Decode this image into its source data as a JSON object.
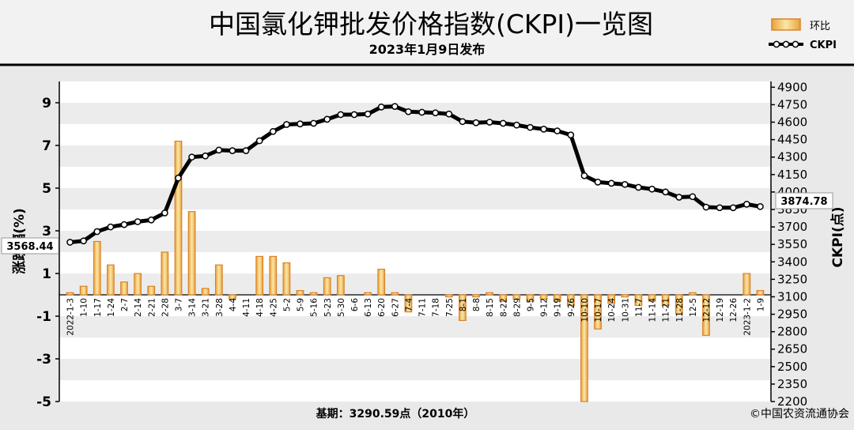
{
  "header": {
    "title": "中国氯化钾批发价格指数(CKPI)一览图",
    "subtitle": "2023年1月9日发布"
  },
  "legend": {
    "bar_label": "环比",
    "line_label": "CKPI"
  },
  "footer": {
    "base_note": "基期：3290.59点（2010年）",
    "source": "©中国农资流通协会"
  },
  "chart_data": {
    "type": "bar+line",
    "categories": [
      "2022-1-3",
      "1-10",
      "1-17",
      "1-24",
      "2-7",
      "2-14",
      "2-21",
      "2-28",
      "3-7",
      "3-14",
      "3-21",
      "3-28",
      "4-4",
      "4-11",
      "4-18",
      "4-25",
      "5-2",
      "5-9",
      "5-16",
      "5-23",
      "5-30",
      "6-6",
      "6-13",
      "6-20",
      "6-27",
      "7-4",
      "7-11",
      "7-18",
      "7-25",
      "8-1",
      "8-8",
      "8-15",
      "8-22",
      "8-29",
      "9-5",
      "9-12",
      "9-19",
      "9-26",
      "10-10",
      "10-17",
      "10-24",
      "10-31",
      "11-7",
      "11-14",
      "11-21",
      "11-28",
      "12-5",
      "12-12",
      "12-19",
      "12-26",
      "2023-1-2",
      "1-9"
    ],
    "series": [
      {
        "name": "环比",
        "axis": "left",
        "type": "bar",
        "values": [
          0.1,
          0.4,
          2.5,
          1.4,
          0.6,
          1.0,
          0.4,
          2.0,
          7.2,
          3.9,
          0.3,
          1.4,
          -0.2,
          0.0,
          1.8,
          1.8,
          1.5,
          0.2,
          0.1,
          0.8,
          0.9,
          0.0,
          0.1,
          1.2,
          0.1,
          -0.8,
          0.0,
          0.0,
          -0.1,
          -1.2,
          -0.1,
          0.1,
          -0.3,
          -0.2,
          -0.3,
          -0.2,
          -0.3,
          -0.5,
          -5.0,
          -1.6,
          -0.4,
          -0.1,
          -0.5,
          -0.3,
          -0.5,
          -0.9,
          0.1,
          -1.9,
          0.0,
          0.0,
          1.0,
          0.2
        ]
      },
      {
        "name": "CKPI",
        "axis": "right",
        "type": "line",
        "values": [
          3568.44,
          3580,
          3660,
          3700,
          3720,
          3745,
          3760,
          3820,
          4120,
          4300,
          4310,
          4360,
          4355,
          4355,
          4440,
          4520,
          4580,
          4585,
          4590,
          4625,
          4665,
          4665,
          4670,
          4730,
          4735,
          4690,
          4685,
          4680,
          4670,
          4605,
          4595,
          4600,
          4590,
          4575,
          4555,
          4540,
          4525,
          4490,
          4140,
          4085,
          4075,
          4065,
          4040,
          4025,
          4000,
          3955,
          3960,
          3870,
          3865,
          3865,
          3895,
          3874.78
        ]
      }
    ],
    "y_left": {
      "label": "涨跌幅(%)",
      "ylim": [
        -5,
        10
      ],
      "ticks": [
        -5,
        -3,
        -1,
        1,
        3,
        5,
        7,
        9
      ]
    },
    "y_right": {
      "label": "CKPI(点)",
      "ylim": [
        2200,
        4950
      ],
      "ticks": [
        2200,
        2350,
        2500,
        2650,
        2800,
        2950,
        3100,
        3250,
        3400,
        3550,
        3700,
        3850,
        4000,
        4150,
        4300,
        4450,
        4600,
        4750,
        4900
      ]
    },
    "callouts": {
      "start": "3568.44",
      "end": "3874.78"
    },
    "grid": true,
    "legend_position": "top-right",
    "colors": {
      "bar_edge": "#d9822b",
      "bar_fill": "#f2d88a",
      "line": "#000000",
      "marker_fill": "#ffffff"
    }
  }
}
